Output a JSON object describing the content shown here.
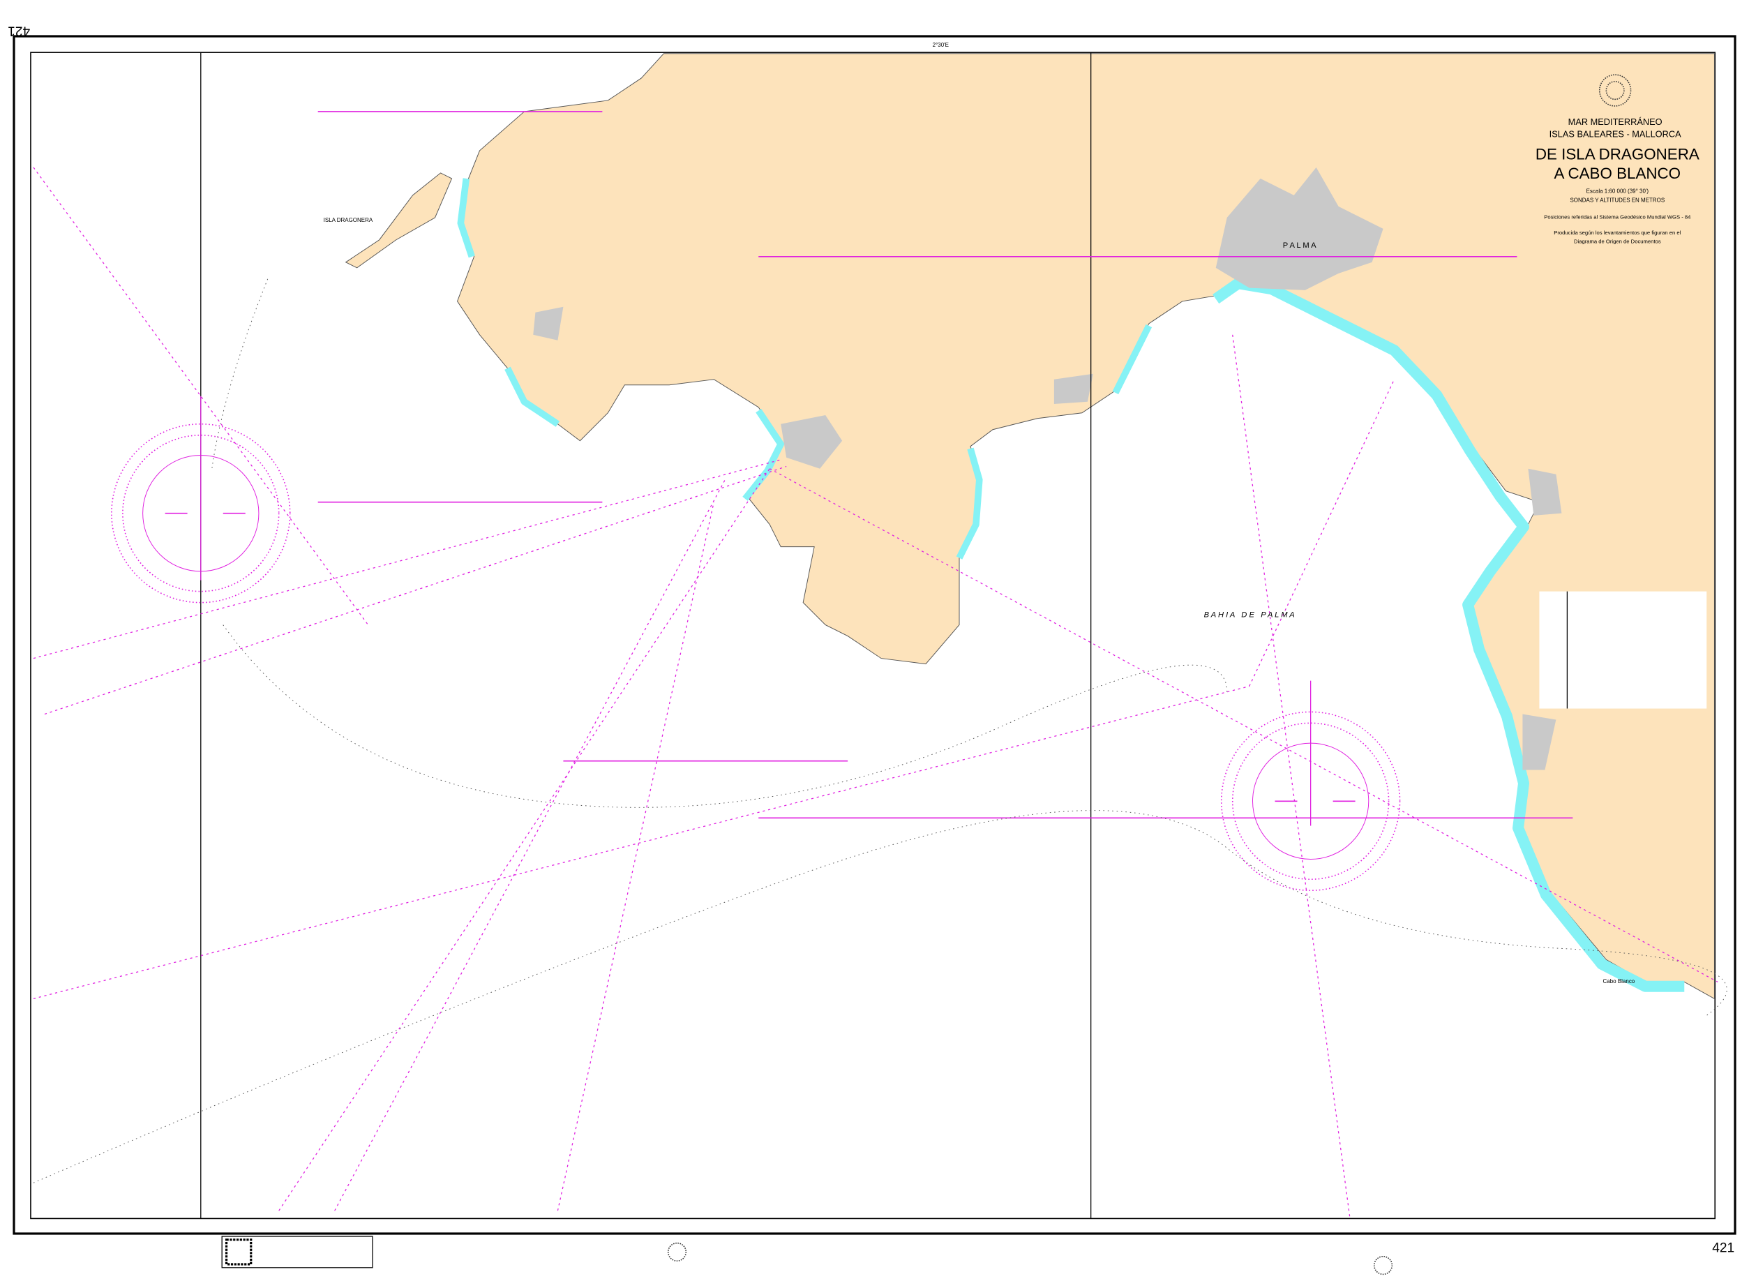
{
  "chart": {
    "number": "421",
    "number_rotated": "421",
    "header": {
      "sea": "MAR MEDITERRÁNEO",
      "region": "ISLAS BALEARES - MALLORCA",
      "title_line1": "DE ISLA DRAGONERA",
      "title_line2": "A CABO BLANCO",
      "scale": "Escala 1:60 000 (39° 30')",
      "soundings": "SONDAS Y ALTITUDES EN METROS",
      "datum_line1": "Posiciones referidas al Sistema Geodésico Mundial WGS - 84",
      "survey_line1": "Producida según los levantamientos que figuran en el",
      "survey_line2": "Diagrama de Origen de Documentos"
    },
    "labels": {
      "bay": "B A H I A   D E   P A L M A",
      "city": "P A L M A",
      "island": "ISLA DRAGONERA",
      "cape_east": "Cabo Blanco",
      "longitude_top": "2°30'E"
    },
    "colors": {
      "land": "#fde3bb",
      "shallow": "#85f2f5",
      "shallow_light": "#cdfafb",
      "urban": "#c9c9c9",
      "magenta": "#e020e0",
      "sea": "#ffffff"
    },
    "icons": [
      "compass-rose",
      "compass-rose",
      "hydrographic-seal",
      "qr-code"
    ]
  }
}
